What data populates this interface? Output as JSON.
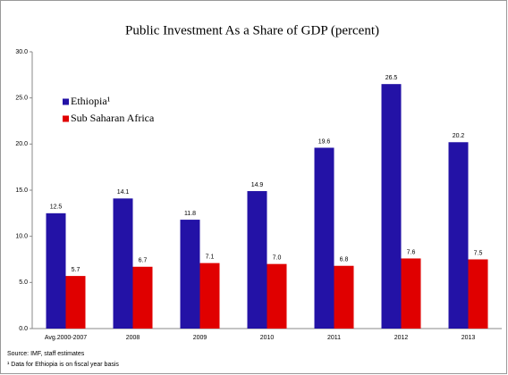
{
  "chart_data": {
    "type": "bar",
    "title": "Public Investment As a Share of GDP (percent)",
    "categories": [
      "Avg.2000-2007",
      "2008",
      "2009",
      "2010",
      "2011",
      "2012",
      "2013"
    ],
    "series": [
      {
        "name": "Ethiopia¹",
        "color": "#2312a6",
        "values": [
          12.5,
          14.1,
          11.8,
          14.9,
          19.6,
          26.5,
          20.2
        ],
        "value_labels": [
          "12.5",
          "14.1",
          "11.8",
          "14.9",
          "19.6",
          "26.5",
          "20.2"
        ]
      },
      {
        "name": "Sub Saharan Africa",
        "color": "#e00000",
        "values": [
          5.7,
          6.7,
          7.1,
          7.0,
          6.8,
          7.6,
          7.5
        ],
        "value_labels": [
          "5.7",
          "6.7",
          "7.1",
          "7.0",
          "6.8",
          "7.6",
          "7.5"
        ]
      }
    ],
    "ylim": [
      0,
      30
    ],
    "yticks": [
      {
        "value": 0,
        "label": "0.0"
      },
      {
        "value": 5,
        "label": "5.0"
      },
      {
        "value": 10,
        "label": "10.0"
      },
      {
        "value": 15,
        "label": "15.0"
      },
      {
        "value": 20,
        "label": "20.0"
      },
      {
        "value": 25,
        "label": "25.0"
      },
      {
        "value": 30,
        "label": "30.0"
      }
    ],
    "grid": false,
    "legend_position": "upper left",
    "source": "Source: IMF, staff estimates",
    "footnote": "¹ Data for Ethiopia is on fiscal year basis"
  }
}
